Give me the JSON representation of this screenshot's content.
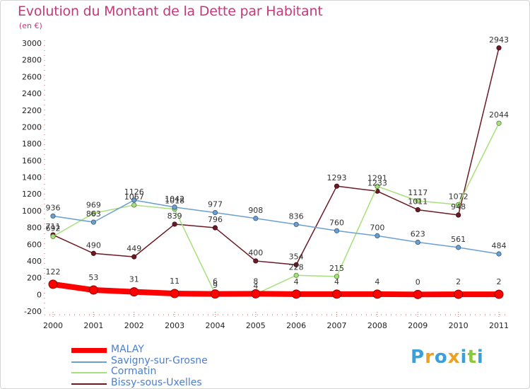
{
  "chart_data": {
    "type": "line",
    "title": "Evolution du Montant de la Dette par Habitant",
    "subtitle": "(en €)",
    "x": [
      "2000",
      "2001",
      "2002",
      "2003",
      "2004",
      "2005",
      "2006",
      "2007",
      "2008",
      "2009",
      "2010",
      "2011"
    ],
    "ylim": [
      -200,
      3000
    ],
    "yticks": [
      "-200",
      "0",
      "200",
      "400",
      "600",
      "800",
      "1000",
      "1200",
      "1400",
      "1600",
      "1800",
      "2000",
      "2200",
      "2400",
      "2600",
      "2800",
      "3000"
    ],
    "grid": false,
    "legend_position": "bottom-left",
    "series": [
      {
        "name": "Bissy-sous-Uxelles",
        "color": "#6b1a24",
        "values": [
          711,
          490,
          449,
          839,
          796,
          400,
          354,
          1293,
          1233,
          1011,
          948,
          2943
        ],
        "labels": [
          "711",
          "490",
          "449",
          "839",
          "796",
          "400",
          "354",
          "1293",
          "1233",
          "1011",
          "948",
          "2943"
        ]
      },
      {
        "name": "Cormatin",
        "color": "#a6e07a",
        "values": [
          692,
          969,
          1067,
          1018,
          9,
          4,
          228,
          215,
          1291,
          1117,
          1072,
          2044
        ],
        "labels": [
          "692",
          "969",
          "1067",
          "1018",
          "9",
          "4",
          "228",
          "215",
          "1291",
          "1117",
          "1072",
          "2044"
        ]
      },
      {
        "name": "Savigny-sur-Grosne",
        "color": "#6c9fd1",
        "values": [
          936,
          863,
          1126,
          1042,
          977,
          908,
          836,
          760,
          700,
          623,
          561,
          484
        ],
        "labels": [
          "936",
          "863",
          "1126",
          "1042",
          "977",
          "908",
          "836",
          "760",
          "700",
          "623",
          "561",
          "484"
        ]
      },
      {
        "name": "MALAY",
        "color": "#ff0000",
        "values": [
          122,
          53,
          31,
          11,
          6,
          8,
          4,
          4,
          4,
          0,
          2,
          2
        ],
        "labels": [
          "122",
          "53",
          "31",
          "11",
          "6",
          "8",
          "4",
          "4",
          "4",
          "0",
          "2",
          "2"
        ]
      }
    ],
    "legend": [
      {
        "name": "MALAY",
        "color": "#ff0000",
        "text_color": "#4a7fd0"
      },
      {
        "name": "Savigny-sur-Grosne",
        "color": "#6c9fd1",
        "text_color": "#4a7fd0"
      },
      {
        "name": "Cormatin",
        "color": "#a6e07a",
        "text_color": "#4a7fd0"
      },
      {
        "name": "Bissy-sous-Uxelles",
        "color": "#6b1a24",
        "text_color": "#4a7fd0"
      }
    ]
  },
  "brand": {
    "letters": [
      "P",
      "r",
      "o",
      "x",
      "i",
      "t",
      "i"
    ],
    "colors": [
      "#3aa0d8",
      "#f0a020",
      "#3aa0d8",
      "#f0a020",
      "#3aa0d8",
      "#8cc83c",
      "#3aa0d8"
    ]
  }
}
